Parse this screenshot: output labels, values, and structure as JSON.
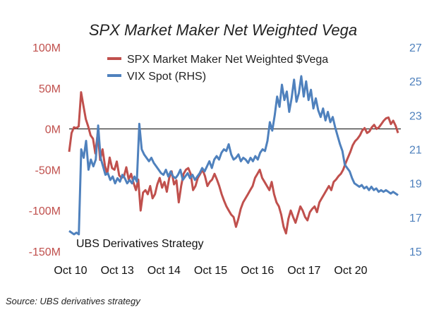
{
  "chart_data": {
    "type": "line",
    "title": "SPX Market Maker Net Weighted Vega",
    "source": "Source: UBS derivatives strategy",
    "watermark": "UBS Derivatives Strategy",
    "x_ticks": [
      "Oct 10",
      "Oct 13",
      "Oct 14",
      "Oct 15",
      "Oct 16",
      "Oct 17",
      "Oct 20"
    ],
    "y_left": {
      "ticks": [
        "100M",
        "50M",
        "0M",
        "-50M",
        "-100M",
        "-150M"
      ],
      "range": [
        -150,
        100
      ],
      "color": "#c0504d"
    },
    "y_right": {
      "ticks": [
        "27",
        "25",
        "23",
        "21",
        "19",
        "17",
        "15"
      ],
      "range": [
        15,
        27
      ],
      "color": "#4f81bd"
    },
    "zero_line": true,
    "legend_position": "top",
    "series": [
      {
        "name": "SPX Market Maker Net Weighted $Vega",
        "axis": "left",
        "color": "#c0504d",
        "values": [
          -28,
          -5,
          2,
          1,
          3,
          45,
          28,
          12,
          3,
          -8,
          -12,
          -30,
          -5,
          -38,
          -25,
          -45,
          -55,
          -35,
          -48,
          -50,
          -40,
          -57,
          -60,
          -58,
          -47,
          -62,
          -55,
          -66,
          -75,
          -62,
          -100,
          -78,
          -75,
          -80,
          -70,
          -85,
          -80,
          -68,
          -60,
          -72,
          -65,
          -77,
          -60,
          -52,
          -68,
          -63,
          -90,
          -70,
          -55,
          -50,
          -48,
          -55,
          -75,
          -70,
          -60,
          -55,
          -50,
          -58,
          -70,
          -65,
          -62,
          -55,
          -62,
          -70,
          -80,
          -88,
          -95,
          -100,
          -105,
          -108,
          -120,
          -110,
          -98,
          -90,
          -85,
          -80,
          -75,
          -70,
          -60,
          -55,
          -50,
          -60,
          -65,
          -70,
          -75,
          -65,
          -80,
          -90,
          -95,
          -105,
          -120,
          -128,
          -110,
          -100,
          -108,
          -115,
          -105,
          -95,
          -100,
          -108,
          -112,
          -102,
          -98,
          -95,
          -102,
          -90,
          -85,
          -80,
          -75,
          -70,
          -75,
          -65,
          -62,
          -58,
          -55,
          -50,
          -42,
          -35,
          -28,
          -20,
          -15,
          -12,
          -8,
          -2,
          1,
          -5,
          -3,
          2,
          5,
          0,
          2,
          6,
          10,
          13,
          14,
          6,
          10,
          4,
          -5
        ]
      },
      {
        "name": "VIX Spot (RHS)",
        "axis": "right",
        "color": "#4f81bd",
        "values": [
          16.2,
          16.1,
          16.0,
          16.1,
          16.0,
          21.0,
          20.5,
          21.5,
          19.8,
          20.4,
          20.0,
          20.4,
          22.4,
          20.5,
          20.0,
          19.5,
          19.6,
          19.2,
          19.4,
          19.0,
          19.3,
          19.1,
          19.5,
          19.3,
          19.0,
          19.2,
          19.0,
          19.4,
          19.1,
          22.5,
          21.0,
          20.7,
          20.5,
          20.3,
          20.5,
          20.2,
          20.0,
          19.8,
          19.6,
          19.5,
          19.8,
          19.4,
          19.7,
          19.4,
          19.3,
          19.5,
          19.8,
          19.2,
          19.4,
          19.6,
          19.3,
          19.5,
          19.2,
          19.4,
          19.6,
          19.9,
          19.7,
          20.0,
          20.3,
          19.9,
          20.4,
          20.6,
          20.4,
          20.8,
          21.0,
          20.9,
          21.3,
          20.7,
          20.4,
          20.5,
          20.7,
          20.3,
          20.5,
          20.4,
          20.2,
          20.5,
          20.3,
          20.6,
          20.4,
          20.8,
          21.0,
          20.9,
          21.5,
          22.6,
          22.1,
          23.0,
          24.1,
          23.5,
          24.8,
          23.9,
          24.4,
          23.2,
          24.0,
          25.1,
          23.8,
          24.3,
          25.3,
          24.1,
          25.0,
          23.9,
          24.5,
          23.4,
          24.0,
          23.3,
          22.9,
          23.4,
          22.7,
          23.2,
          22.6,
          22.9,
          22.3,
          21.8,
          21.3,
          20.9,
          20.1,
          19.9,
          19.7,
          19.3,
          19.0,
          18.9,
          18.8,
          18.9,
          18.7,
          18.8,
          18.6,
          18.8,
          18.6,
          18.7,
          18.5,
          18.6,
          18.5,
          18.6,
          18.5,
          18.4,
          18.5,
          18.4,
          18.3
        ]
      }
    ]
  }
}
